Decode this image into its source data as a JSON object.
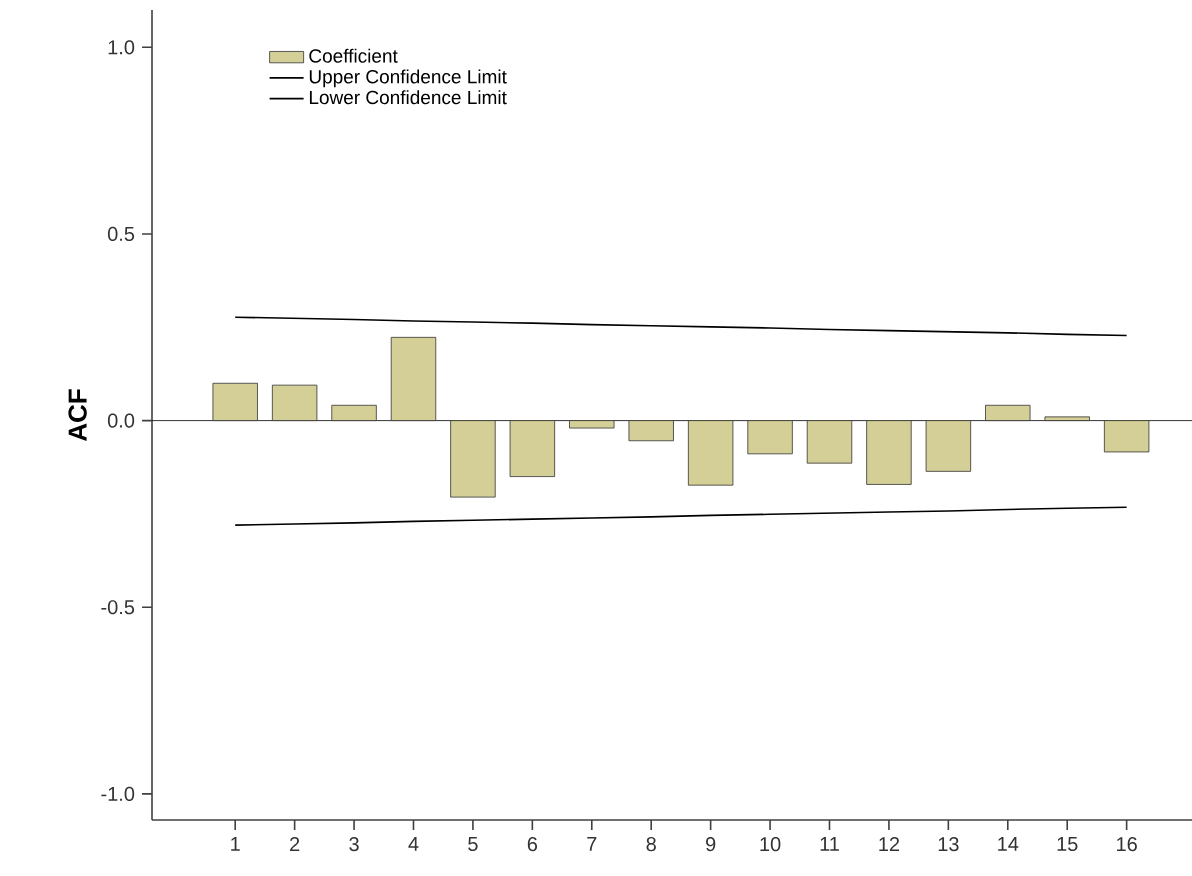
{
  "chart_data": {
    "type": "bar",
    "ylabel": "ACF",
    "categories": [
      "1",
      "2",
      "3",
      "4",
      "5",
      "6",
      "7",
      "8",
      "9",
      "10",
      "11",
      "12",
      "13",
      "14",
      "15",
      "16"
    ],
    "series": [
      {
        "name": "Coefficient",
        "type": "bar",
        "color": "#d3cf97",
        "values": [
          0.1,
          0.095,
          0.041,
          0.223,
          -0.205,
          -0.15,
          -0.02,
          -0.054,
          -0.173,
          -0.089,
          -0.114,
          -0.171,
          -0.136,
          0.041,
          0.01,
          -0.084
        ]
      },
      {
        "name": "Upper Confidence Limit",
        "type": "line",
        "color": "#000000",
        "values": [
          0.277,
          0.274,
          0.271,
          0.267,
          0.264,
          0.261,
          0.257,
          0.254,
          0.251,
          0.248,
          0.244,
          0.241,
          0.238,
          0.235,
          0.231,
          0.228
        ]
      },
      {
        "name": "Lower Confidence Limit",
        "type": "line",
        "color": "#000000",
        "values": [
          -0.28,
          -0.277,
          -0.274,
          -0.27,
          -0.267,
          -0.264,
          -0.261,
          -0.258,
          -0.254,
          -0.251,
          -0.248,
          -0.245,
          -0.242,
          -0.238,
          -0.235,
          -0.232
        ]
      }
    ],
    "ylim": [
      -1.07,
      1.1
    ],
    "yticks": [
      {
        "value": -1,
        "label": "-1.0"
      },
      {
        "value": -0.5,
        "label": "-0.5"
      },
      {
        "value": 0,
        "label": "0.0"
      },
      {
        "value": 0.5,
        "label": "0.5"
      },
      {
        "value": 1,
        "label": "1.0"
      }
    ],
    "ref_lines": [
      {
        "axis": "y",
        "value": 0
      }
    ],
    "legend": "top left"
  }
}
